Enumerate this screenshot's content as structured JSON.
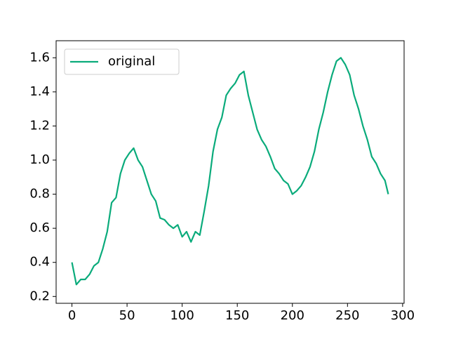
{
  "chart_data": {
    "type": "line",
    "x": [
      0,
      4,
      8,
      12,
      16,
      20,
      24,
      28,
      32,
      36,
      40,
      44,
      48,
      52,
      56,
      60,
      64,
      68,
      72,
      76,
      80,
      84,
      88,
      92,
      96,
      100,
      104,
      108,
      112,
      116,
      120,
      124,
      128,
      132,
      136,
      140,
      144,
      148,
      152,
      156,
      160,
      164,
      168,
      172,
      176,
      180,
      184,
      188,
      192,
      196,
      200,
      204,
      208,
      212,
      216,
      220,
      224,
      228,
      232,
      236,
      240,
      244,
      248,
      252,
      256,
      260,
      264,
      268,
      272,
      276,
      280,
      284,
      287
    ],
    "series": [
      {
        "name": "original",
        "color": "#0aab7b",
        "values": [
          0.4,
          0.27,
          0.3,
          0.3,
          0.33,
          0.38,
          0.4,
          0.48,
          0.58,
          0.75,
          0.78,
          0.92,
          1.0,
          1.04,
          1.07,
          1.0,
          0.96,
          0.88,
          0.8,
          0.76,
          0.66,
          0.65,
          0.62,
          0.6,
          0.62,
          0.55,
          0.58,
          0.52,
          0.58,
          0.56,
          0.7,
          0.85,
          1.05,
          1.18,
          1.25,
          1.38,
          1.42,
          1.45,
          1.5,
          1.52,
          1.38,
          1.28,
          1.18,
          1.12,
          1.08,
          1.02,
          0.95,
          0.92,
          0.88,
          0.86,
          0.8,
          0.82,
          0.85,
          0.9,
          0.96,
          1.05,
          1.18,
          1.28,
          1.4,
          1.5,
          1.58,
          1.6,
          1.56,
          1.5,
          1.38,
          1.3,
          1.2,
          1.12,
          1.02,
          0.98,
          0.92,
          0.88,
          0.8
        ]
      }
    ],
    "xlim": [
      -14.35,
      301.35
    ],
    "ylim": [
      0.16,
      1.7
    ],
    "xticks": [
      0,
      50,
      100,
      150,
      200,
      250,
      300
    ],
    "yticks": [
      0.2,
      0.4,
      0.6,
      0.8,
      {
        "value": 1.0,
        "label": "1.0"
      },
      1.2,
      1.4,
      1.6
    ],
    "legend": "upper left"
  }
}
